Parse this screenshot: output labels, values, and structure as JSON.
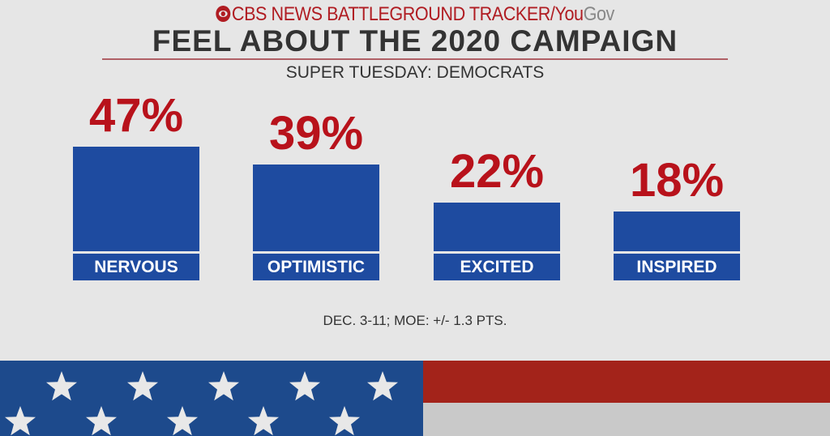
{
  "header": {
    "brand": "CBS NEWS BATTLEGROUND TRACKER/",
    "brand_you": "You",
    "brand_gov": "Gov"
  },
  "chart_data": {
    "type": "bar",
    "title": "FEEL ABOUT THE 2020 CAMPAIGN",
    "subtitle": "SUPER TUESDAY: DEMOCRATS",
    "categories": [
      "NERVOUS",
      "OPTIMISTIC",
      "EXCITED",
      "INSPIRED"
    ],
    "values": [
      47,
      39,
      22,
      18
    ],
    "value_labels": [
      "47%",
      "39%",
      "22%",
      "18%"
    ],
    "ylim": [
      0,
      100
    ],
    "note": "DEC. 3-11; MOE: +/- 1.3 PTS.",
    "colors": {
      "bar": "#1e4ba0",
      "value": "#b8121b"
    }
  }
}
